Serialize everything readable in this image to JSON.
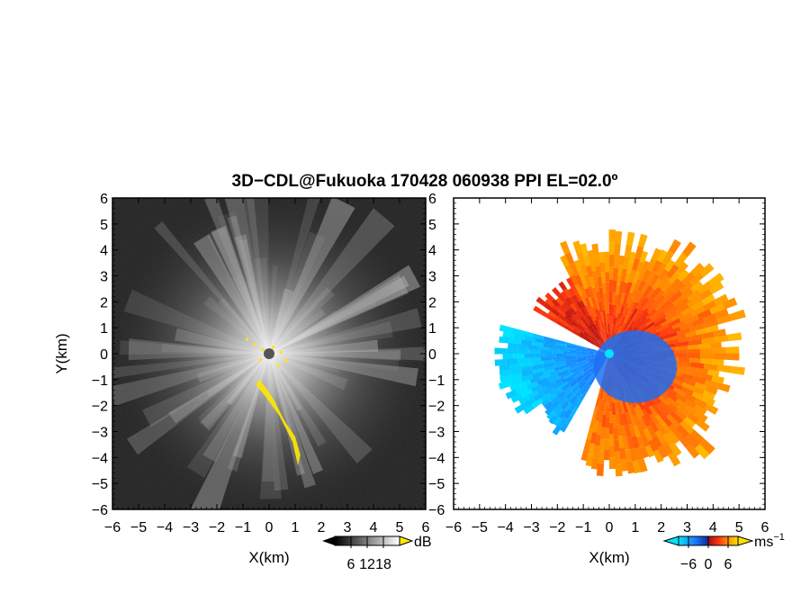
{
  "title": "3D−CDL@Fukuoka 170428 060938 PPI EL=02.0º",
  "chart_data": [
    {
      "type": "heatmap",
      "panel": "reflectivity",
      "xlabel": "X(km)",
      "ylabel": "Y(km)",
      "xlim": [
        -6,
        6
      ],
      "ylim": [
        -6,
        6
      ],
      "xticks": [
        "−6",
        "−5",
        "−4",
        "−3",
        "−2",
        "−1",
        "0",
        "1",
        "2",
        "3",
        "4",
        "5",
        "6"
      ],
      "yticks": [
        "−6",
        "−5",
        "−4",
        "−3",
        "−2",
        "−1",
        "0",
        "1",
        "2",
        "3",
        "4",
        "5",
        "6"
      ],
      "colorbar": {
        "unit": "dB",
        "ticks": [
          "6",
          "12",
          "18"
        ],
        "range": [
          0,
          24
        ],
        "colormap": "grayscale-with-yellow-overflow"
      }
    },
    {
      "type": "heatmap",
      "panel": "doppler-velocity",
      "xlabel": "X(km)",
      "ylabel": "",
      "xlim": [
        -6,
        6
      ],
      "ylim": [
        -6,
        6
      ],
      "xticks": [
        "−6",
        "−5",
        "−4",
        "−3",
        "−2",
        "−1",
        "0",
        "1",
        "2",
        "3",
        "4",
        "5",
        "6"
      ],
      "colorbar": {
        "unit": "ms",
        "unit_exp": "−1",
        "ticks": [
          "−6",
          "0",
          "6"
        ],
        "range": [
          -9,
          9
        ],
        "colormap": "cyan-blue-red-yellow"
      }
    }
  ]
}
